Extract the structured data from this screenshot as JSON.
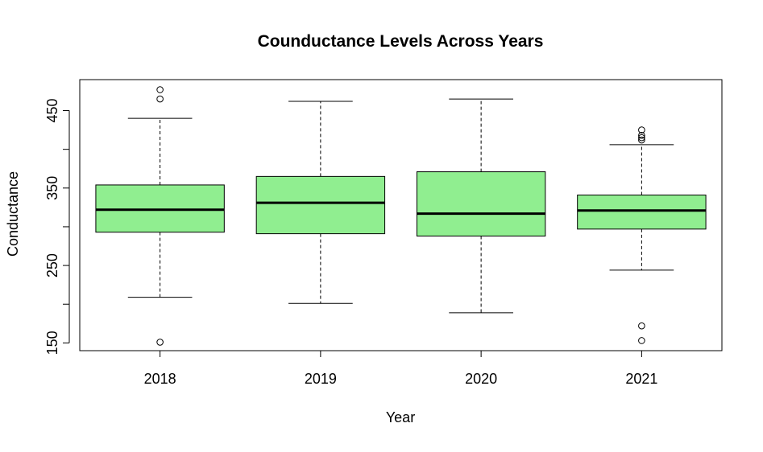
{
  "chart_data": {
    "type": "box",
    "title": "Counductance Levels Across Years",
    "xlabel": "Year",
    "ylabel": "Conductance",
    "ylim": [
      140,
      490
    ],
    "y_ticks": [
      150,
      200,
      250,
      300,
      350,
      400,
      450
    ],
    "y_tick_labels": [
      "150",
      "250",
      "350",
      "450"
    ],
    "box_fill": "#90ee90",
    "categories": [
      "2018",
      "2019",
      "2020",
      "2021"
    ],
    "boxes": [
      {
        "year": "2018",
        "whisker_low": 209,
        "q1": 293,
        "median": 322,
        "q3": 354,
        "whisker_high": 440,
        "outliers": [
          151,
          465,
          477
        ]
      },
      {
        "year": "2019",
        "whisker_low": 201,
        "q1": 291,
        "median": 331,
        "q3": 365,
        "whisker_high": 462,
        "outliers": []
      },
      {
        "year": "2020",
        "whisker_low": 189,
        "q1": 288,
        "median": 317,
        "q3": 371,
        "whisker_high": 465,
        "outliers": []
      },
      {
        "year": "2021",
        "whisker_low": 244,
        "q1": 297,
        "median": 321,
        "q3": 341,
        "whisker_high": 406,
        "outliers": [
          153,
          172,
          412,
          415,
          418,
          425
        ]
      }
    ]
  }
}
